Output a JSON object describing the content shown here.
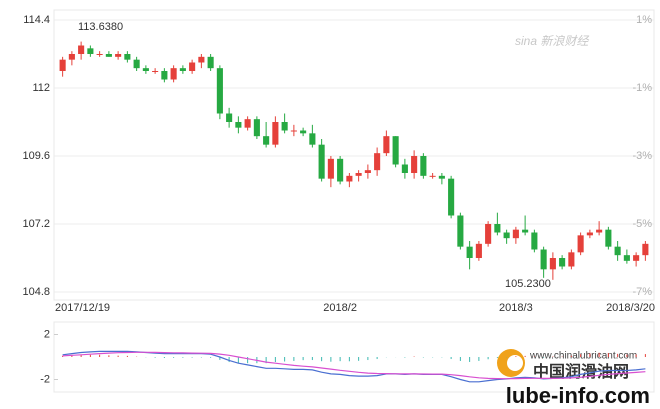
{
  "chart_data": [
    {
      "type": "candlestick",
      "categories": [
        "2017/12/19",
        null,
        null,
        null,
        null,
        null,
        null,
        null,
        null,
        null,
        null,
        null,
        null,
        null,
        null,
        null,
        null,
        null,
        null,
        null,
        null,
        null,
        null,
        null,
        null,
        null,
        null,
        null,
        null,
        null,
        "2018/2",
        null,
        null,
        null,
        null,
        null,
        null,
        null,
        null,
        null,
        null,
        null,
        null,
        null,
        null,
        null,
        null,
        null,
        null,
        "2018/3",
        null,
        null,
        null,
        null,
        null,
        null,
        null,
        null,
        null,
        null,
        null,
        null,
        null,
        "2018/3/20"
      ],
      "open": [
        112.6,
        113.0,
        113.2,
        113.4,
        113.2,
        113.2,
        113.1,
        113.2,
        113.0,
        112.7,
        112.6,
        112.6,
        112.3,
        112.7,
        112.6,
        112.9,
        113.1,
        112.7,
        111.1,
        110.8,
        110.6,
        110.9,
        110.3,
        110.0,
        110.8,
        110.5,
        110.5,
        110.4,
        110.0,
        108.8,
        109.5,
        108.7,
        108.9,
        109.0,
        109.1,
        109.7,
        110.3,
        109.3,
        109.0,
        109.6,
        108.9,
        108.9,
        108.8,
        107.5,
        106.4,
        106.0,
        106.5,
        107.2,
        106.9,
        106.7,
        107.0,
        106.9,
        106.3,
        105.6,
        106.0,
        105.7,
        106.2,
        106.8,
        106.9,
        107.0,
        106.4,
        106.1,
        105.9,
        106.1
      ],
      "high": [
        113.1,
        113.3,
        113.638,
        113.5,
        113.3,
        113.3,
        113.3,
        113.3,
        113.1,
        112.8,
        112.7,
        112.7,
        112.8,
        112.8,
        113.0,
        113.2,
        113.2,
        112.8,
        111.3,
        111.0,
        111.0,
        111.0,
        110.8,
        111.0,
        111.1,
        110.7,
        110.6,
        110.7,
        110.2,
        109.6,
        109.6,
        109.0,
        109.1,
        109.3,
        109.9,
        110.5,
        110.3,
        109.5,
        109.8,
        109.7,
        109.0,
        109.0,
        108.9,
        107.6,
        106.6,
        106.6,
        107.3,
        107.6,
        107.0,
        107.1,
        107.5,
        107.0,
        106.4,
        106.2,
        106.1,
        106.3,
        106.9,
        107.0,
        107.3,
        107.1,
        106.6,
        106.3,
        106.2,
        106.6
      ],
      "low": [
        112.4,
        112.8,
        113.0,
        113.1,
        113.1,
        113.1,
        113.0,
        112.9,
        112.6,
        112.5,
        112.5,
        112.2,
        112.2,
        112.5,
        112.5,
        112.7,
        112.6,
        110.9,
        110.6,
        110.4,
        110.5,
        110.2,
        109.9,
        109.9,
        110.4,
        110.3,
        110.3,
        109.9,
        108.7,
        108.5,
        108.6,
        108.5,
        108.7,
        108.8,
        108.9,
        109.6,
        109.2,
        108.8,
        108.8,
        108.8,
        108.8,
        108.6,
        107.4,
        106.3,
        105.6,
        105.9,
        106.4,
        106.8,
        106.5,
        106.5,
        106.8,
        106.2,
        105.3,
        105.23,
        105.6,
        105.6,
        106.1,
        106.7,
        106.8,
        106.3,
        105.9,
        105.8,
        105.7,
        105.9
      ],
      "close": [
        113.0,
        113.2,
        113.5,
        113.2,
        113.2,
        113.1,
        113.2,
        113.0,
        112.7,
        112.6,
        112.6,
        112.3,
        112.7,
        112.6,
        112.9,
        113.1,
        112.7,
        111.1,
        110.8,
        110.6,
        110.9,
        110.3,
        110.0,
        110.8,
        110.5,
        110.5,
        110.4,
        110.0,
        108.8,
        109.5,
        108.7,
        108.9,
        109.0,
        109.1,
        109.7,
        110.3,
        109.3,
        109.0,
        109.6,
        108.9,
        108.9,
        108.8,
        107.5,
        106.4,
        106.0,
        106.5,
        107.2,
        106.9,
        106.7,
        107.0,
        106.9,
        106.3,
        105.6,
        106.0,
        105.7,
        106.2,
        106.8,
        106.9,
        107.0,
        106.4,
        106.1,
        105.9,
        106.1,
        106.5
      ],
      "up_color": "#e5403a",
      "down_color": "#26a942",
      "ylim": [
        104.8,
        114.4
      ],
      "yticks": [
        {
          "value": 104.8,
          "label": "104.8"
        },
        {
          "value": 107.2,
          "label": "107.2"
        },
        {
          "value": 109.6,
          "label": "109.6"
        },
        112,
        {
          "value": 114.4,
          "label": "114.4"
        }
      ],
      "y2lim": [
        -7,
        1
      ],
      "y2ticks": [
        {
          "value": -7,
          "label": "-7%"
        },
        {
          "value": -5,
          "label": "-5%"
        },
        {
          "value": -3,
          "label": "-3%"
        },
        {
          "value": -1,
          "label": "-1%"
        },
        {
          "value": 1,
          "label": "1%"
        }
      ],
      "grid": true,
      "annotations": [
        "113.6380",
        "105.2300"
      ]
    },
    {
      "type": "macd",
      "ylim": [
        -2.4,
        2.4
      ],
      "yticks": [
        -2,
        2
      ],
      "histogram": [
        0.1,
        0.15,
        0.2,
        0.2,
        0.2,
        0.15,
        0.12,
        0.1,
        0.03,
        -0.02,
        -0.06,
        -0.09,
        -0.07,
        -0.06,
        -0.05,
        -0.04,
        -0.07,
        -0.26,
        -0.45,
        -0.55,
        -0.55,
        -0.55,
        -0.55,
        -0.45,
        -0.4,
        -0.35,
        -0.28,
        -0.27,
        -0.37,
        -0.42,
        -0.37,
        -0.38,
        -0.34,
        -0.27,
        -0.18,
        -0.02,
        -0.01,
        -0.05,
        0.0,
        -0.04,
        -0.03,
        -0.03,
        -0.18,
        -0.35,
        -0.44,
        -0.35,
        -0.2,
        -0.08,
        -0.02,
        0.07,
        0.1,
        0.04,
        -0.05,
        0.0,
        0.04,
        0.11,
        0.25,
        0.32,
        0.38,
        0.35,
        0.28,
        0.22,
        0.22,
        0.26
      ],
      "up_color": "#e5403a",
      "down_color": "#3bb8b0",
      "series": [
        {
          "color": "#4a6fd1",
          "values": [
            0.2,
            0.3,
            0.4,
            0.45,
            0.5,
            0.5,
            0.5,
            0.5,
            0.45,
            0.4,
            0.35,
            0.3,
            0.3,
            0.3,
            0.3,
            0.3,
            0.25,
            0.0,
            -0.3,
            -0.55,
            -0.7,
            -0.85,
            -1.0,
            -1.0,
            -1.05,
            -1.1,
            -1.1,
            -1.15,
            -1.35,
            -1.5,
            -1.55,
            -1.65,
            -1.7,
            -1.7,
            -1.65,
            -1.5,
            -1.5,
            -1.55,
            -1.5,
            -1.55,
            -1.55,
            -1.55,
            -1.75,
            -2.0,
            -2.2,
            -2.2,
            -2.1,
            -2.0,
            -1.95,
            -1.85,
            -1.8,
            -1.85,
            -1.95,
            -1.9,
            -1.85,
            -1.75,
            -1.55,
            -1.4,
            -1.25,
            -1.2,
            -1.2,
            -1.2,
            -1.15,
            -1.05
          ]
        },
        {
          "color": "#d84fd0",
          "values": [
            0.1,
            0.15,
            0.2,
            0.25,
            0.3,
            0.35,
            0.38,
            0.4,
            0.42,
            0.42,
            0.41,
            0.39,
            0.37,
            0.36,
            0.35,
            0.34,
            0.32,
            0.26,
            0.15,
            0.0,
            -0.15,
            -0.3,
            -0.45,
            -0.55,
            -0.65,
            -0.75,
            -0.82,
            -0.88,
            -0.98,
            -1.08,
            -1.18,
            -1.27,
            -1.36,
            -1.43,
            -1.47,
            -1.48,
            -1.49,
            -1.5,
            -1.5,
            -1.51,
            -1.52,
            -1.52,
            -1.57,
            -1.65,
            -1.76,
            -1.85,
            -1.9,
            -1.92,
            -1.93,
            -1.92,
            -1.9,
            -1.89,
            -1.9,
            -1.9,
            -1.89,
            -1.86,
            -1.8,
            -1.72,
            -1.63,
            -1.55,
            -1.48,
            -1.42,
            -1.37,
            -1.31
          ]
        }
      ]
    }
  ],
  "watermarks": {
    "sina": "sina 新浪财经",
    "site": "www.chinalubricant.com",
    "site_cn": "中国润滑油网",
    "domain": "lube-info.com"
  }
}
